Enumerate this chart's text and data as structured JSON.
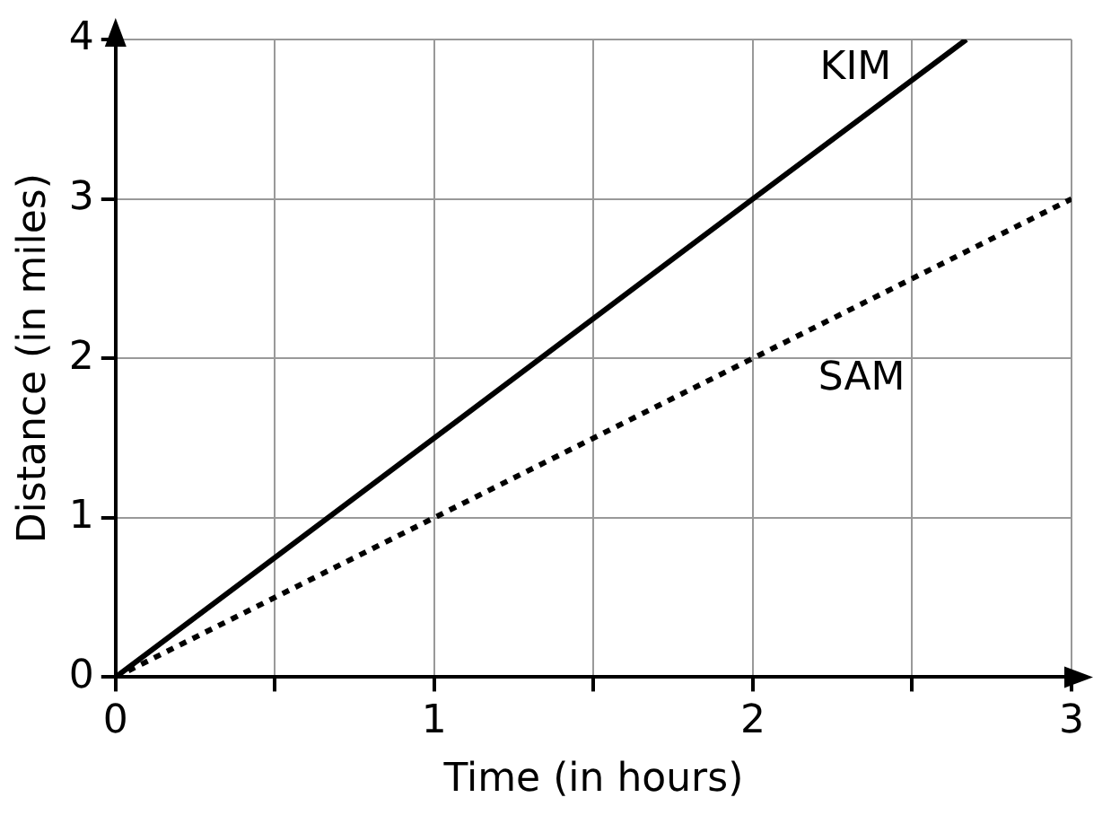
{
  "chart_data": {
    "type": "line",
    "xlabel": "Time (in hours)",
    "ylabel": "Distance (in miles)",
    "series": [
      {
        "name": "KIM",
        "color": "#000000",
        "x": [
          0,
          2,
          2.67
        ],
        "values": [
          0,
          3,
          4
        ],
        "line_style": "solid"
      },
      {
        "name": "SAM",
        "color": "#000000",
        "x": [
          0,
          3
        ],
        "values": [
          0,
          3
        ],
        "line_style": "dotted"
      }
    ],
    "xlim": [
      0,
      3
    ],
    "xticks": [
      0,
      {
        "value": 0.5,
        "label": null
      },
      1,
      {
        "value": 1.5,
        "label": null
      },
      2,
      {
        "value": 2.5,
        "label": null
      },
      3
    ],
    "ylim": [
      0,
      4
    ],
    "yticks": [
      0,
      1,
      2,
      3,
      4
    ],
    "grid": true,
    "legend": false,
    "marker": "none"
  }
}
